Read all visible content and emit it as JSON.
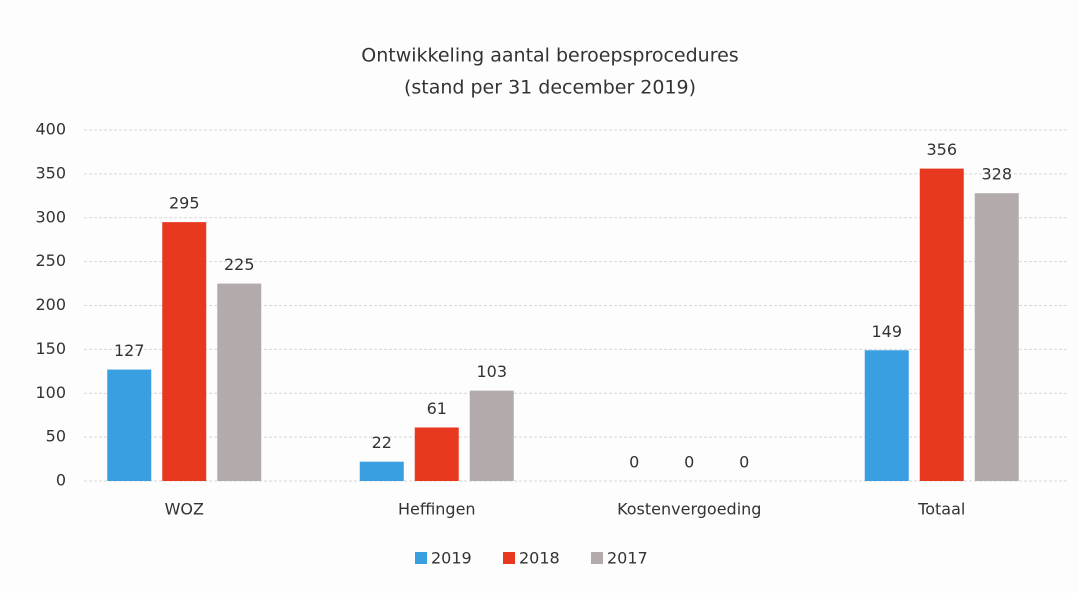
{
  "chart_data": {
    "type": "bar",
    "title": "Ontwikkeling aantal beroepsprocedures",
    "subtitle": "(stand per 31 december 2019)",
    "categories": [
      "WOZ",
      "Heffingen",
      "Kostenvergoeding",
      "Totaal"
    ],
    "series": [
      {
        "name": "2019",
        "color": "#3a9fe0",
        "values": [
          127,
          22,
          0,
          149
        ]
      },
      {
        "name": "2018",
        "color": "#e8381f",
        "values": [
          295,
          61,
          0,
          356
        ]
      },
      {
        "name": "2017",
        "color": "#b3abab",
        "values": [
          225,
          103,
          0,
          328
        ]
      }
    ],
    "ylim": [
      0,
      400
    ],
    "yticks": [
      0,
      50,
      100,
      150,
      200,
      250,
      300,
      350,
      400
    ],
    "grid": true,
    "legend": "bottom"
  }
}
